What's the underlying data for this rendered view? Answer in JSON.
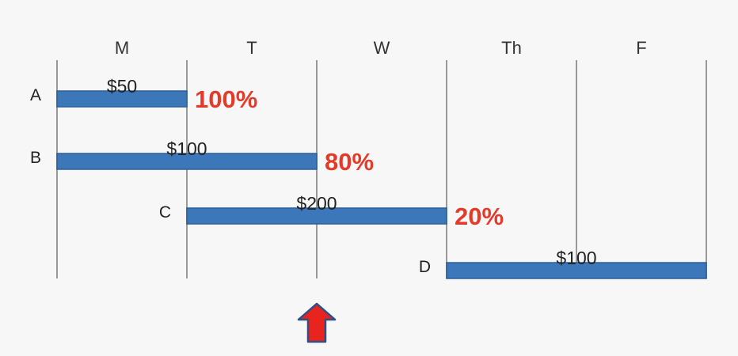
{
  "chart_data": {
    "type": "gantt",
    "days": [
      "M",
      "T",
      "W",
      "Th",
      "F"
    ],
    "tasks": [
      {
        "name": "A",
        "cost": "$50",
        "start": 0,
        "end": 1,
        "percent": "100%"
      },
      {
        "name": "B",
        "cost": "$100",
        "start": 0,
        "end": 2,
        "percent": "80%"
      },
      {
        "name": "C",
        "cost": "$200",
        "start": 1,
        "end": 3,
        "percent": "20%"
      },
      {
        "name": "D",
        "cost": "$100",
        "start": 3,
        "end": 5,
        "percent": ""
      }
    ],
    "status_marker": {
      "position": 2,
      "shape": "up-arrow"
    }
  },
  "colors": {
    "bar_fill": "#3c78b9",
    "bar_stroke": "#2d5f96",
    "percent": "#e53a2a",
    "gridline": "#9a9a9a",
    "arrow_fill": "#e8241f",
    "arrow_stroke": "#2f4f85"
  }
}
